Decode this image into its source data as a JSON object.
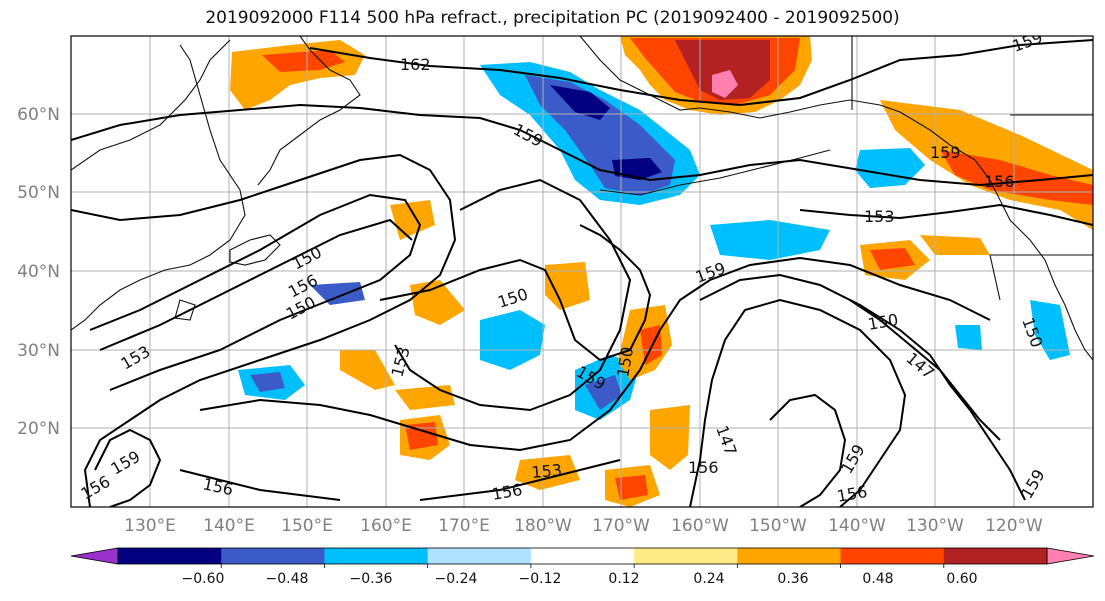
{
  "title": "2019092000 F114 500 hPa refract., precipitation PC (2019092400 - 2019092500)",
  "map": {
    "lat_labels": [
      "60°N",
      "50°N",
      "40°N",
      "30°N",
      "20°N"
    ],
    "lon_labels": [
      "130°E",
      "140°E",
      "150°E",
      "160°E",
      "170°E",
      "180°W",
      "170°W",
      "160°W",
      "150°W",
      "140°W",
      "130°W",
      "120°W"
    ],
    "contour_labels": [
      "162",
      "159",
      "159",
      "156",
      "153",
      "150",
      "156",
      "150",
      "150",
      "159",
      "153",
      "159",
      "150",
      "153",
      "159",
      "156",
      "156",
      "156",
      "156",
      "150",
      "147",
      "147",
      "153",
      "159",
      "150",
      "159",
      "156",
      "159"
    ],
    "colors": {
      "coastline": "#111111",
      "contour": "#000000",
      "grid": "#b0b0b0"
    }
  },
  "colorbar": {
    "tick_labels": [
      "−0.60",
      "−0.48",
      "−0.36",
      "−0.24",
      "−0.12",
      "0.12",
      "0.24",
      "0.36",
      "0.48",
      "0.60"
    ],
    "bins": [
      {
        "color": "#9932cc"
      },
      {
        "color": "#000080"
      },
      {
        "color": "#3a5bc8"
      },
      {
        "color": "#00bfff"
      },
      {
        "color": "#b0e2ff"
      },
      {
        "color": "#ffffff"
      },
      {
        "color": "#ffeb87"
      },
      {
        "color": "#ffa500"
      },
      {
        "color": "#ff4500"
      },
      {
        "color": "#b22222"
      },
      {
        "color": "#ff80b0"
      }
    ]
  }
}
